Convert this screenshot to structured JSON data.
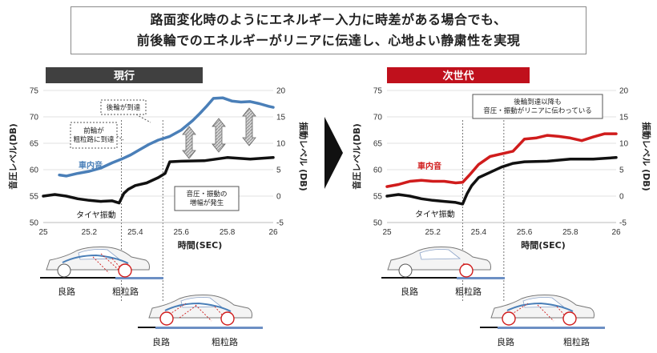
{
  "headline": {
    "line1": "路面変化時のようにエネルギー入力に時差がある場合でも、",
    "line2": "前後輪でのエネルギーがリニアに伝達し、心地よい静粛性を実現"
  },
  "colors": {
    "current_banner": "#404040",
    "next_banner": "#c0101c",
    "cabin_current": "#4a7fb8",
    "cabin_next": "#d01c1c",
    "tire": "#111111"
  },
  "chart_data": [
    {
      "type": "line",
      "title": "現行",
      "xlabel": "時間(SEC)",
      "ylabel": "音圧レベル(DB)",
      "y2label": "振動レベル (DB)",
      "xlim": [
        25,
        26
      ],
      "ylim": [
        50,
        75
      ],
      "y2lim": [
        -5,
        20
      ],
      "x_ticks": [
        "25",
        "25.2",
        "25.4",
        "25.6",
        "25.8",
        "26"
      ],
      "y_ticks": [
        "50",
        "55",
        "60",
        "65",
        "70",
        "75"
      ],
      "y2_ticks": [
        "-5",
        "0",
        "5",
        "10",
        "15",
        "20"
      ],
      "grid": true,
      "series": [
        {
          "name": "車内音",
          "axis": "left",
          "x": [
            25.07,
            25.1,
            25.15,
            25.2,
            25.25,
            25.3,
            25.34,
            25.38,
            25.42,
            25.46,
            25.5,
            25.55,
            25.6,
            25.65,
            25.68,
            25.71,
            25.74,
            25.78,
            25.82,
            25.86,
            25.9,
            25.94,
            25.98,
            26
          ],
          "y": [
            59,
            58.8,
            59.3,
            59.7,
            60.3,
            61.3,
            62,
            62.8,
            63.8,
            64.8,
            65.6,
            66.3,
            67.5,
            69.3,
            70.6,
            72,
            73.5,
            73.6,
            73,
            72.8,
            72.9,
            72.5,
            72,
            71.8
          ]
        },
        {
          "name": "タイヤ振動",
          "axis": "right",
          "x": [
            25,
            25.05,
            25.1,
            25.15,
            25.2,
            25.25,
            25.3,
            25.33,
            25.35,
            25.37,
            25.4,
            25.45,
            25.5,
            25.53,
            25.55,
            25.6,
            25.7,
            25.8,
            25.9,
            26
          ],
          "y": [
            0,
            0.3,
            0,
            -0.5,
            -0.8,
            -1,
            -0.9,
            -1.3,
            0.5,
            1.3,
            2,
            2.5,
            3.5,
            4.3,
            6.5,
            6.6,
            6.7,
            7.3,
            7,
            7.3
          ]
        }
      ],
      "annotations": [
        "後輪が到達",
        "前輪が\n粗粒路に到達",
        "音圧・振動の\n増幅が発生"
      ]
    },
    {
      "type": "line",
      "title": "次世代",
      "xlabel": "時間(SEC)",
      "ylabel": "音圧レベル(DB)",
      "y2label": "振動レベル (DB)",
      "xlim": [
        25,
        26
      ],
      "ylim": [
        50,
        75
      ],
      "y2lim": [
        -5,
        20
      ],
      "x_ticks": [
        "25",
        "25.2",
        "25.4",
        "25.6",
        "25.8",
        "26"
      ],
      "y_ticks": [
        "50",
        "55",
        "60",
        "65",
        "70",
        "75"
      ],
      "y2_ticks": [
        "-5",
        "0",
        "5",
        "10",
        "15",
        "20"
      ],
      "grid": true,
      "series": [
        {
          "name": "車内音",
          "axis": "left",
          "x": [
            25,
            25.05,
            25.1,
            25.15,
            25.2,
            25.25,
            25.3,
            25.33,
            25.36,
            25.4,
            25.45,
            25.5,
            25.55,
            25.6,
            25.65,
            25.7,
            25.75,
            25.8,
            25.85,
            25.9,
            25.95,
            26
          ],
          "y": [
            56.8,
            57.2,
            57.8,
            58,
            57.8,
            57.8,
            57.5,
            57.6,
            59,
            61,
            62.5,
            63,
            63.5,
            65.8,
            66,
            66.5,
            66.3,
            66,
            65.5,
            66.2,
            66.8,
            66.8
          ]
        },
        {
          "name": "タイヤ振動",
          "axis": "right",
          "x": [
            25,
            25.05,
            25.1,
            25.15,
            25.2,
            25.25,
            25.3,
            25.33,
            25.35,
            25.37,
            25.4,
            25.45,
            25.5,
            25.55,
            25.6,
            25.7,
            25.8,
            25.9,
            26
          ],
          "y": [
            0,
            0.3,
            0,
            -0.5,
            -0.8,
            -1,
            -1.2,
            -1.5,
            0.5,
            2,
            3.5,
            4.5,
            5.5,
            6.2,
            6.5,
            6.6,
            7,
            7,
            7.3
          ]
        }
      ],
      "annotations": [
        "後輪到達以降も\n音圧・振動がリニアに伝わっている"
      ]
    }
  ],
  "illustration": {
    "road_smooth": "良路",
    "road_rough": "粗粒路"
  }
}
